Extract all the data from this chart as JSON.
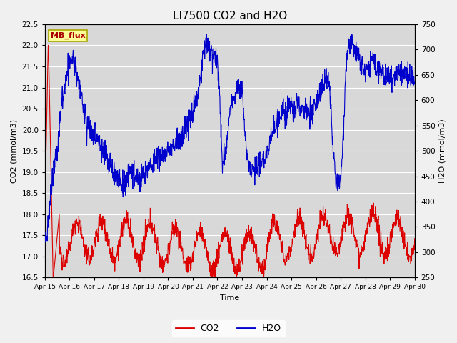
{
  "title": "LI7500 CO2 and H2O",
  "xlabel": "Time",
  "ylabel_left": "CO2 (mmol/m3)",
  "ylabel_right": "H2O (mmol/m3)",
  "ylim_left": [
    16.5,
    22.5
  ],
  "ylim_right": [
    250,
    750
  ],
  "xtick_labels": [
    "Apr 15",
    "Apr 16",
    "Apr 17",
    "Apr 18",
    "Apr 19",
    "Apr 20",
    "Apr 21",
    "Apr 22",
    "Apr 23",
    "Apr 24",
    "Apr 25",
    "Apr 26",
    "Apr 27",
    "Apr 28",
    "Apr 29",
    "Apr 30"
  ],
  "co2_color": "#dd0000",
  "h2o_color": "#0000cc",
  "legend_label_co2": "CO2",
  "legend_label_h2o": "H2O",
  "annotation_text": "MB_flux",
  "annotation_bg": "#ffff99",
  "annotation_border": "#aaa800",
  "annotation_text_color": "#aa0000",
  "plot_bg_color": "#d8d8d8",
  "fig_bg_color": "#f0f0f0",
  "grid_color": "#ffffff",
  "linewidth": 0.8,
  "title_fontsize": 11,
  "n_days": 15,
  "n_per_day": 96
}
